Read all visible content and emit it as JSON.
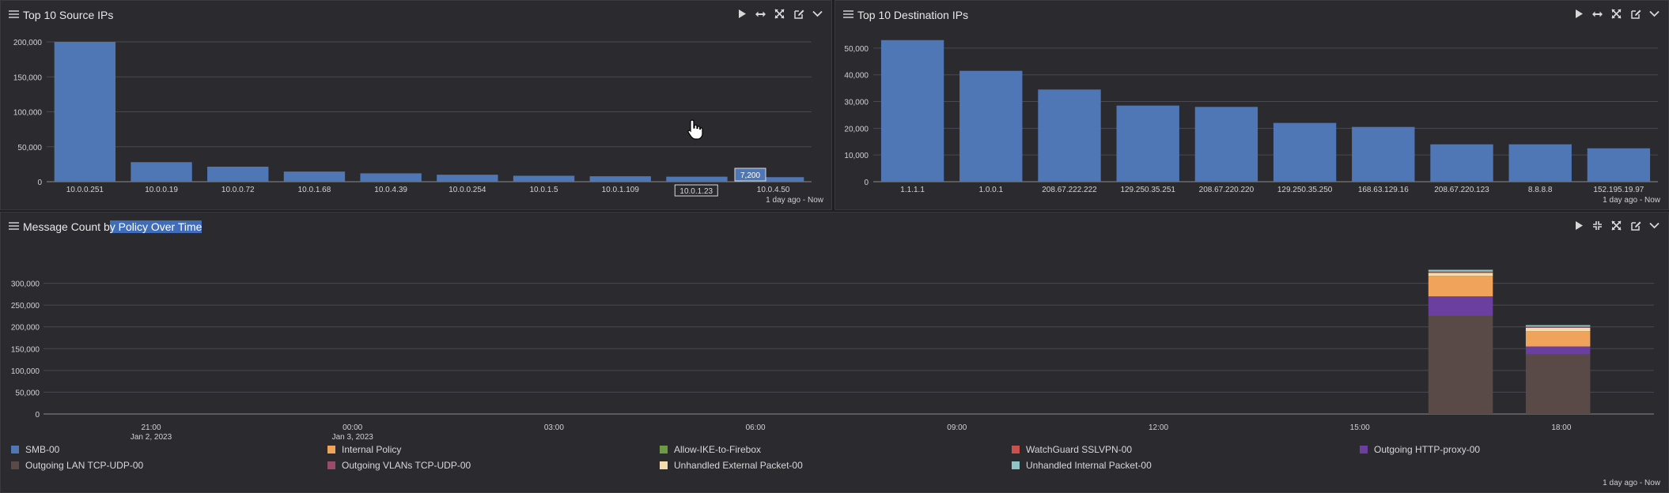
{
  "panels": {
    "source": {
      "title": "Top 10 Source IPs",
      "footer": "1 day ago - Now",
      "tooltip": "7,200",
      "hover_label": "10.0.1.23"
    },
    "destination": {
      "title": "Top 10 Destination IPs",
      "footer": "1 day ago - Now"
    },
    "message": {
      "title_plain": "Message Count b",
      "title_selected": "y Policy Over Time",
      "footer": "1 day ago - Now"
    }
  },
  "toolbar_icons": [
    "play-icon",
    "expand-horizontal-icon",
    "fullscreen-icon",
    "edit-icon",
    "chevron-down-icon"
  ],
  "colors": {
    "bar": "#4f77b6",
    "panel_bg": "#2b2a2e",
    "grid": "#4a4950",
    "selection": "#3f6db7"
  },
  "chart_data": [
    {
      "type": "bar",
      "title": "Top 10 Source IPs",
      "categories": [
        "10.0.0.251",
        "10.0.0.19",
        "10.0.0.72",
        "10.0.1.68",
        "10.0.4.39",
        "10.0.0.254",
        "10.0.1.5",
        "10.0.1.109",
        "10.0.1.23",
        "10.0.4.50"
      ],
      "values": [
        200000,
        28000,
        21500,
        14500,
        12000,
        10000,
        8500,
        7800,
        7200,
        6500
      ],
      "ylim": [
        0,
        200000
      ],
      "yticks": [
        0,
        50000,
        100000,
        150000,
        200000
      ],
      "ytick_labels": [
        "0",
        "50,000",
        "100,000",
        "150,000",
        "200,000"
      ],
      "grid": true
    },
    {
      "type": "bar",
      "title": "Top 10 Destination IPs",
      "categories": [
        "1.1.1.1",
        "1.0.0.1",
        "208.67.222.222",
        "129.250.35.251",
        "208.67.220.220",
        "129.250.35.250",
        "168.63.129.16",
        "208.67.220.123",
        "8.8.8.8",
        "152.195.19.97"
      ],
      "values": [
        53000,
        41500,
        34500,
        28500,
        28000,
        22000,
        20500,
        14000,
        14000,
        12500
      ],
      "ylim": [
        0,
        55000
      ],
      "yticks": [
        0,
        10000,
        20000,
        30000,
        40000,
        50000
      ],
      "ytick_labels": [
        "0",
        "10,000",
        "20,000",
        "30,000",
        "40,000",
        "50,000"
      ],
      "grid": true
    },
    {
      "type": "bar",
      "stacked": true,
      "title": "Message Count by Policy Over Time",
      "x_ticks": [
        "21:00",
        "00:00",
        "03:00",
        "06:00",
        "09:00",
        "12:00",
        "15:00",
        "18:00"
      ],
      "x_subticks": [
        "Jan 2, 2023",
        "Jan 3, 2023"
      ],
      "categories": [
        "17:00",
        "18:00"
      ],
      "ylim": [
        0,
        350000
      ],
      "yticks": [
        0,
        50000,
        100000,
        150000,
        200000,
        250000,
        300000
      ],
      "ytick_labels": [
        "0",
        "50,000",
        "100,000",
        "150,000",
        "200,000",
        "250,000",
        "300,000"
      ],
      "series": [
        {
          "name": "SMB-00",
          "color": "#4f77b6",
          "values": [
            0,
            0
          ]
        },
        {
          "name": "Internal Policy",
          "color": "#f0a35a",
          "values": [
            47000,
            35000
          ]
        },
        {
          "name": "Allow-IKE-to-Firebox",
          "color": "#6e9a46",
          "values": [
            1000,
            1000
          ]
        },
        {
          "name": "WatchGuard SSLVPN-00",
          "color": "#c9504b",
          "values": [
            1000,
            1000
          ]
        },
        {
          "name": "Outgoing HTTP-proxy-00",
          "color": "#6a3f9f",
          "values": [
            45000,
            18000
          ]
        },
        {
          "name": "Outgoing LAN TCP-UDP-00",
          "color": "#5a4a47",
          "values": [
            225000,
            137000
          ]
        },
        {
          "name": "Outgoing VLANs TCP-UDP-00",
          "color": "#9a4a6a",
          "values": [
            1000,
            1000
          ]
        },
        {
          "name": "Unhandled External Packet-00",
          "color": "#f3dcae",
          "values": [
            7000,
            8000
          ]
        },
        {
          "name": "Unhandled Internal Packet-00",
          "color": "#8fc5c5",
          "values": [
            4000,
            3000
          ]
        }
      ],
      "grid": true,
      "legend_position": "bottom"
    }
  ]
}
